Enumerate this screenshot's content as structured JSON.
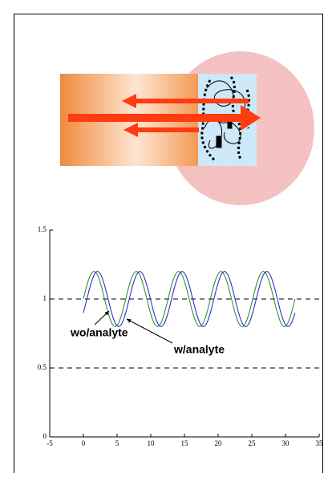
{
  "chart_data": {
    "type": "line",
    "x": [
      0,
      0.52,
      1.05,
      1.57,
      2.09,
      2.62,
      3.14,
      3.67,
      4.19,
      4.71,
      5.24,
      5.76,
      6.28,
      6.81,
      7.33,
      7.85,
      8.38,
      8.9,
      9.42,
      9.95,
      10.47,
      11,
      11.52,
      12.04,
      12.57,
      13.09,
      13.61,
      14.14,
      14.66,
      15.18,
      15.71,
      16.23,
      16.76,
      17.28,
      17.8,
      18.33,
      18.85,
      19.37,
      19.9,
      20.42,
      20.94,
      21.47,
      21.99,
      22.51,
      23.04,
      23.56,
      24.09,
      24.61,
      25.13,
      25.66,
      26.18,
      26.7,
      27.23,
      27.75,
      28.27,
      28.8,
      29.32,
      29.85,
      30.37,
      30.89,
      31.42
    ],
    "series": [
      {
        "name": "wo/analyte",
        "color": "#228b22",
        "values": [
          1,
          1.1,
          1.173,
          1.2,
          1.173,
          1.1,
          1,
          0.9,
          0.827,
          0.8,
          0.827,
          0.9,
          1,
          1.1,
          1.173,
          1.2,
          1.173,
          1.1,
          1,
          0.9,
          0.827,
          0.8,
          0.827,
          0.9,
          1,
          1.1,
          1.173,
          1.2,
          1.173,
          1.1,
          1,
          0.9,
          0.827,
          0.8,
          0.827,
          0.9,
          1,
          1.1,
          1.173,
          1.2,
          1.173,
          1.1,
          1,
          0.9,
          0.827,
          0.8,
          0.827,
          0.9,
          1,
          1.1,
          1.173,
          1.2,
          1.173,
          1.1,
          1,
          0.9,
          0.827,
          0.8,
          0.827,
          0.9,
          1
        ]
      },
      {
        "name": "w/analyte",
        "color": "#1f1fd0",
        "values": [
          0.9,
          1,
          1.1,
          1.173,
          1.2,
          1.173,
          1.1,
          1,
          0.9,
          0.827,
          0.8,
          0.827,
          0.9,
          1,
          1.1,
          1.173,
          1.2,
          1.173,
          1.1,
          1,
          0.9,
          0.827,
          0.8,
          0.827,
          0.9,
          1,
          1.1,
          1.173,
          1.2,
          1.173,
          1.1,
          1,
          0.9,
          0.827,
          0.8,
          0.827,
          0.9,
          1,
          1.1,
          1.173,
          1.2,
          1.173,
          1.1,
          1,
          0.9,
          0.827,
          0.8,
          0.827,
          0.9,
          1,
          1.1,
          1.173,
          1.2,
          1.173,
          1.1,
          1,
          0.9,
          0.827,
          0.8,
          0.827,
          0.9
        ]
      }
    ],
    "xlim": [
      -5,
      35
    ],
    "xticks": [
      -5,
      0,
      5,
      10,
      15,
      20,
      25,
      30,
      35
    ],
    "ylim": [
      0,
      1.5
    ],
    "yticks": [
      0,
      0.5,
      1,
      1.5
    ],
    "dashed_hlines": [
      0.5,
      1
    ]
  }
}
